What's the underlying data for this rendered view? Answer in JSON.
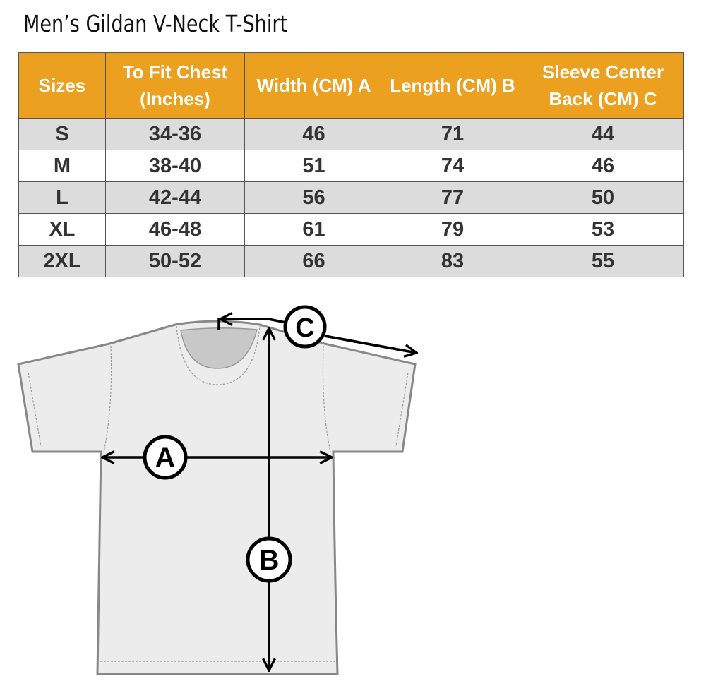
{
  "title": "Men’s Gildan V-Neck T-Shirt",
  "colors": {
    "header": "#eba11f",
    "row_alt": "#dcdcdc"
  },
  "table": {
    "headers": [
      "Sizes",
      "To Fit Chest (Inches)",
      "Width (CM) A",
      "Length  (CM) B",
      "Sleeve Center Back (CM) C"
    ],
    "rows": [
      [
        "S",
        "34-36",
        "46",
        "71",
        "44"
      ],
      [
        "M",
        "38-40",
        "51",
        "74",
        "46"
      ],
      [
        "L",
        "42-44",
        "56",
        "77",
        "50"
      ],
      [
        "XL",
        "46-48",
        "61",
        "79",
        "53"
      ],
      [
        "2XL",
        "50-52",
        "66",
        "83",
        "55"
      ]
    ]
  },
  "diagram": {
    "labels": {
      "a": "A",
      "b": "B",
      "c": "C"
    }
  }
}
